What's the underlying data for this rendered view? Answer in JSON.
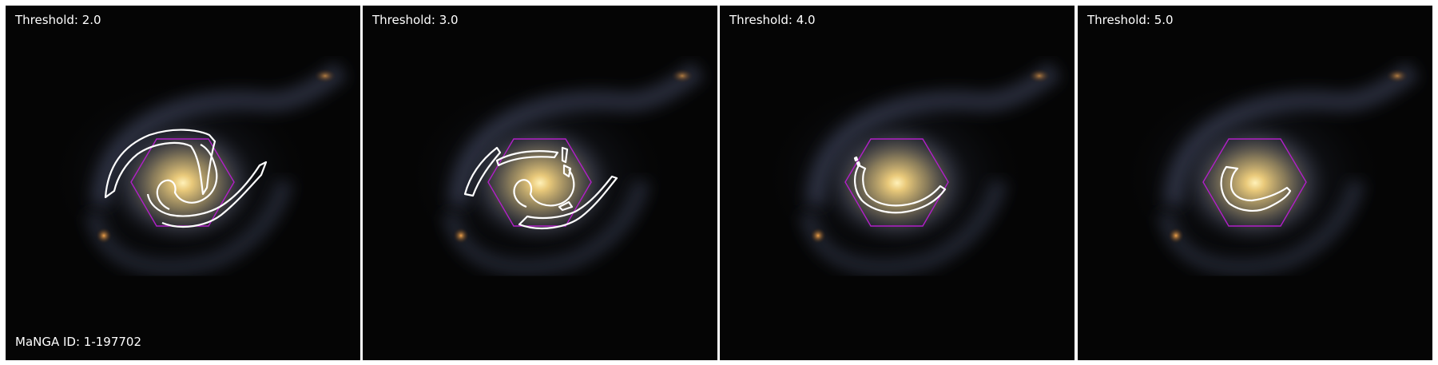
{
  "panels": [
    {
      "label": "Threshold: 2.0"
    },
    {
      "label": "Threshold: 3.0"
    },
    {
      "label": "Threshold: 4.0"
    },
    {
      "label": "Threshold: 5.0"
    }
  ],
  "id_label": "MaNGA ID: 1-197702",
  "colors": {
    "background": "#ffffff",
    "sky": "#050505",
    "galaxy_core": "#f5d27a",
    "galaxy_arms": "#5c6a86",
    "hexagon": "#b21fc8",
    "contour": "#ffffff"
  }
}
